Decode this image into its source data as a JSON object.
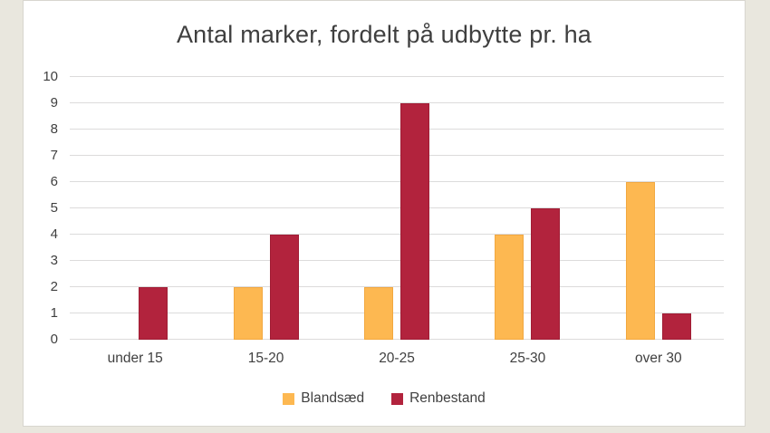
{
  "chart_data": {
    "type": "bar",
    "title": "Antal marker, fordelt på udbytte pr. ha",
    "categories": [
      "under 15",
      "15-20",
      "20-25",
      "25-30",
      "over 30"
    ],
    "series": [
      {
        "name": "Blandsæd",
        "color": "#FDB851",
        "border_color": "#F2A840",
        "values": [
          0,
          2,
          2,
          4,
          6
        ]
      },
      {
        "name": "Renbestand",
        "color": "#B2233D",
        "border_color": "#A01D35",
        "values": [
          2,
          4,
          9,
          5,
          1
        ]
      }
    ],
    "xlabel": "",
    "ylabel": "",
    "ylim": [
      0,
      10
    ],
    "ytick_step": 1,
    "grid": true,
    "legend_position": "bottom"
  },
  "colors": {
    "page_background": "#E9E7DE",
    "panel_background": "#FFFFFF",
    "panel_border": "#D8D6CF",
    "gridline": "#DCDBDB",
    "text": "#404040",
    "title_text": "#3F3F3F"
  }
}
